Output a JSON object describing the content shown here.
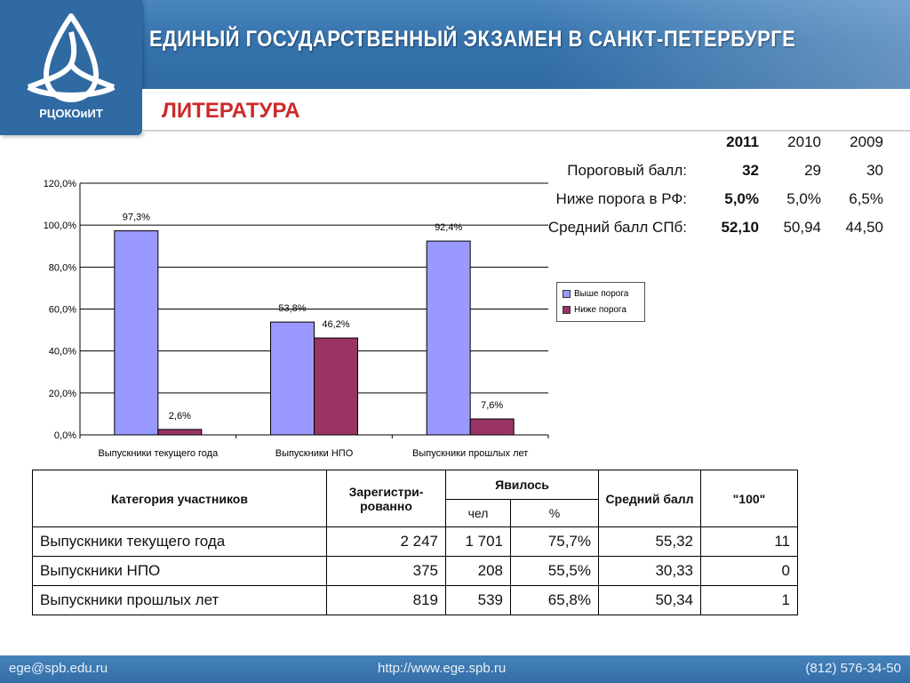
{
  "header": {
    "title": "ЕДИНЫЙ ГОСУДАРСТВЕННЫЙ ЭКЗАМЕН В САНКТ-ПЕТЕРБУРГЕ",
    "logo_text": "РЦОКОиИТ"
  },
  "subject": "ЛИТЕРАТУРА",
  "stats": {
    "years": [
      "2011",
      "2010",
      "2009"
    ],
    "rows": [
      {
        "label": "Пороговый балл:",
        "values": [
          "32",
          "29",
          "30"
        ]
      },
      {
        "label": "Ниже порога в РФ:",
        "values": [
          "5,0%",
          "5,0%",
          "6,5%"
        ]
      },
      {
        "label": "Средний балл СПб:",
        "values": [
          "52,10",
          "50,94",
          "44,50"
        ]
      }
    ]
  },
  "chart_data": {
    "type": "bar",
    "categories": [
      "Выпускники текущего года",
      "Выпускники НПО",
      "Выпускники прошлых лет"
    ],
    "series": [
      {
        "name": "Выше порога",
        "values": [
          97.3,
          53.8,
          92.4
        ],
        "labels": [
          "97,3%",
          "53,8%",
          "92,4%"
        ],
        "color": "#9999ff"
      },
      {
        "name": "Ниже порога",
        "values": [
          2.6,
          46.2,
          7.6
        ],
        "labels": [
          "2,6%",
          "46,2%",
          "7,6%"
        ],
        "color": "#993366"
      }
    ],
    "ylim": [
      0,
      120
    ],
    "yticks": [
      0,
      20,
      40,
      60,
      80,
      100,
      120
    ],
    "ytick_labels": [
      "0,0%",
      "20,0%",
      "40,0%",
      "60,0%",
      "80,0%",
      "100,0%",
      "120,0%"
    ],
    "grid": true,
    "legend": "right"
  },
  "table": {
    "headers": {
      "category": "Категория участников",
      "registered": "Зарегистри-рованно",
      "appeared": "Явилось",
      "appeared_count": "чел",
      "appeared_pct": "%",
      "avg": "Средний балл",
      "hundred": "\"100\""
    },
    "rows": [
      {
        "category": "Выпускники текущего года",
        "registered": "2 247",
        "count": "1 701",
        "pct": "75,7%",
        "avg": "55,32",
        "hundred": "11"
      },
      {
        "category": "Выпускники НПО",
        "registered": "375",
        "count": "208",
        "pct": "55,5%",
        "avg": "30,33",
        "hundred": "0"
      },
      {
        "category": "Выпускники прошлых лет",
        "registered": "819",
        "count": "539",
        "pct": "65,8%",
        "avg": "50,34",
        "hundred": "1"
      }
    ]
  },
  "footer": {
    "email": "ege@spb.edu.ru",
    "url": "http://www.ege.spb.ru",
    "phone": "(812) 576-34-50"
  },
  "colors": {
    "header_blue": "#3673ad",
    "subject_red": "#cc2a2a",
    "bar_above": "#9999ff",
    "bar_below": "#993366"
  }
}
